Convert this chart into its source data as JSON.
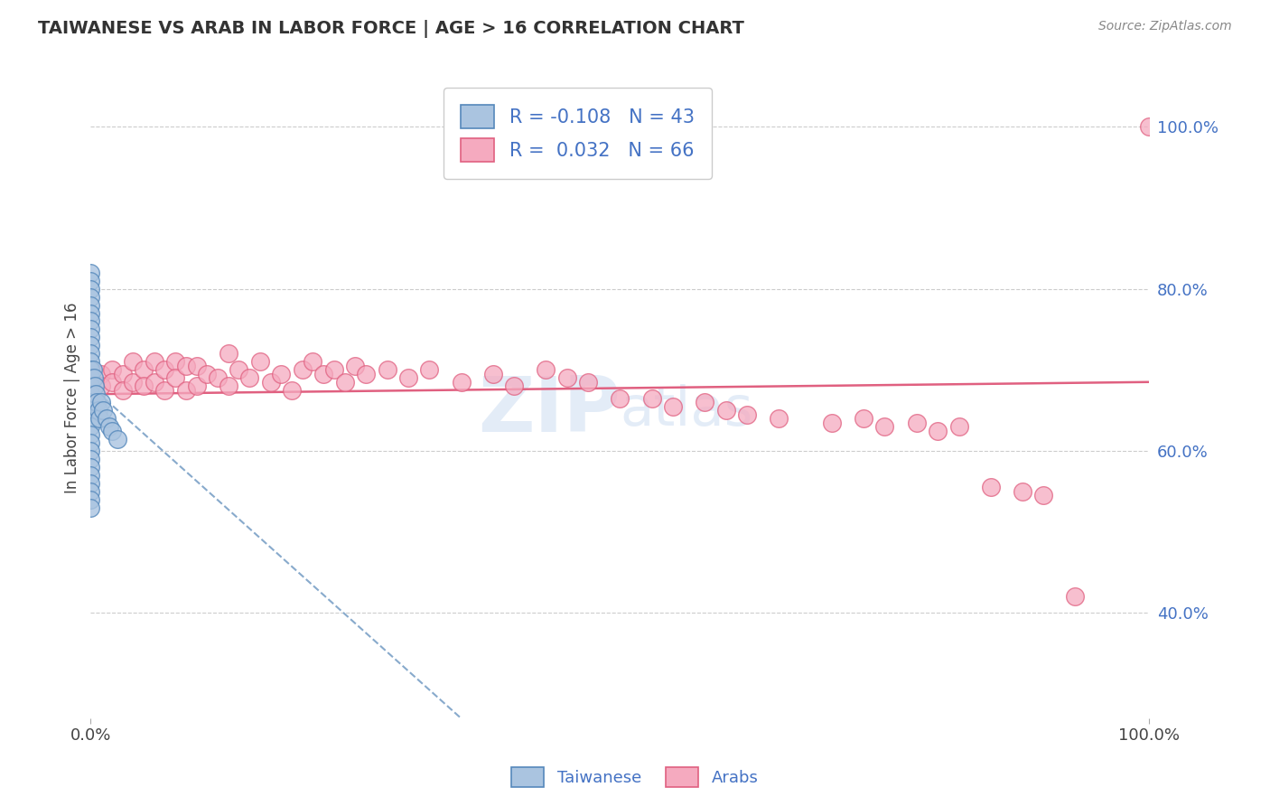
{
  "title": "TAIWANESE VS ARAB IN LABOR FORCE | AGE > 16 CORRELATION CHART",
  "source_text": "Source: ZipAtlas.com",
  "ylabel": "In Labor Force | Age > 16",
  "watermark": "ZIPatlas",
  "xlim": [
    0.0,
    1.0
  ],
  "ylim": [
    0.27,
    1.06
  ],
  "y_tick_vals_right": [
    0.4,
    0.6,
    0.8,
    1.0
  ],
  "y_tick_labels_right": [
    "40.0%",
    "60.0%",
    "80.0%",
    "100.0%"
  ],
  "legend_r1": "R = -0.108",
  "legend_n1": "N = 43",
  "legend_r2": "R =  0.032",
  "legend_n2": "N = 66",
  "taiwanese_color": "#aac4e0",
  "arab_color": "#f5aabf",
  "taiwanese_edge": "#5588bb",
  "arab_edge": "#e06080",
  "trend_taiwanese_color": "#88aacc",
  "trend_arab_color": "#e06080",
  "background_color": "#ffffff",
  "grid_color": "#cccccc",
  "taiwanese_x": [
    0.0,
    0.0,
    0.0,
    0.0,
    0.0,
    0.0,
    0.0,
    0.0,
    0.0,
    0.0,
    0.0,
    0.0,
    0.0,
    0.0,
    0.0,
    0.0,
    0.0,
    0.0,
    0.0,
    0.0,
    0.0,
    0.0,
    0.0,
    0.0,
    0.0,
    0.0,
    0.0,
    0.0,
    0.0,
    0.0,
    0.002,
    0.003,
    0.004,
    0.005,
    0.006,
    0.007,
    0.008,
    0.01,
    0.012,
    0.015,
    0.018,
    0.02,
    0.025
  ],
  "taiwanese_y": [
    0.82,
    0.81,
    0.8,
    0.79,
    0.78,
    0.77,
    0.76,
    0.75,
    0.74,
    0.73,
    0.72,
    0.71,
    0.7,
    0.69,
    0.68,
    0.67,
    0.66,
    0.65,
    0.64,
    0.63,
    0.62,
    0.61,
    0.6,
    0.59,
    0.58,
    0.57,
    0.56,
    0.55,
    0.54,
    0.53,
    0.7,
    0.69,
    0.68,
    0.67,
    0.66,
    0.65,
    0.64,
    0.66,
    0.65,
    0.64,
    0.63,
    0.625,
    0.615
  ],
  "arab_x": [
    0.0,
    0.0,
    0.01,
    0.01,
    0.02,
    0.02,
    0.03,
    0.03,
    0.04,
    0.04,
    0.05,
    0.05,
    0.06,
    0.06,
    0.07,
    0.07,
    0.08,
    0.08,
    0.09,
    0.09,
    0.1,
    0.1,
    0.11,
    0.12,
    0.13,
    0.13,
    0.14,
    0.15,
    0.16,
    0.17,
    0.18,
    0.19,
    0.2,
    0.21,
    0.22,
    0.23,
    0.24,
    0.25,
    0.26,
    0.28,
    0.3,
    0.32,
    0.35,
    0.38,
    0.4,
    0.43,
    0.45,
    0.47,
    0.5,
    0.53,
    0.55,
    0.58,
    0.6,
    0.62,
    0.65,
    0.7,
    0.73,
    0.75,
    0.78,
    0.8,
    0.82,
    0.85,
    0.88,
    0.9,
    0.93,
    1.0
  ],
  "arab_y": [
    0.7,
    0.67,
    0.695,
    0.68,
    0.7,
    0.685,
    0.695,
    0.675,
    0.71,
    0.685,
    0.7,
    0.68,
    0.71,
    0.685,
    0.7,
    0.675,
    0.71,
    0.69,
    0.705,
    0.675,
    0.705,
    0.68,
    0.695,
    0.69,
    0.72,
    0.68,
    0.7,
    0.69,
    0.71,
    0.685,
    0.695,
    0.675,
    0.7,
    0.71,
    0.695,
    0.7,
    0.685,
    0.705,
    0.695,
    0.7,
    0.69,
    0.7,
    0.685,
    0.695,
    0.68,
    0.7,
    0.69,
    0.685,
    0.665,
    0.665,
    0.655,
    0.66,
    0.65,
    0.645,
    0.64,
    0.635,
    0.64,
    0.63,
    0.635,
    0.625,
    0.63,
    0.555,
    0.55,
    0.545,
    0.42,
    1.0
  ],
  "arab_trend_x0": 0.0,
  "arab_trend_y0": 0.67,
  "arab_trend_x1": 1.0,
  "arab_trend_y1": 0.685,
  "tw_trend_x0": 0.0,
  "tw_trend_y0": 0.68,
  "tw_trend_x1": 0.35,
  "tw_trend_y1": 0.27
}
